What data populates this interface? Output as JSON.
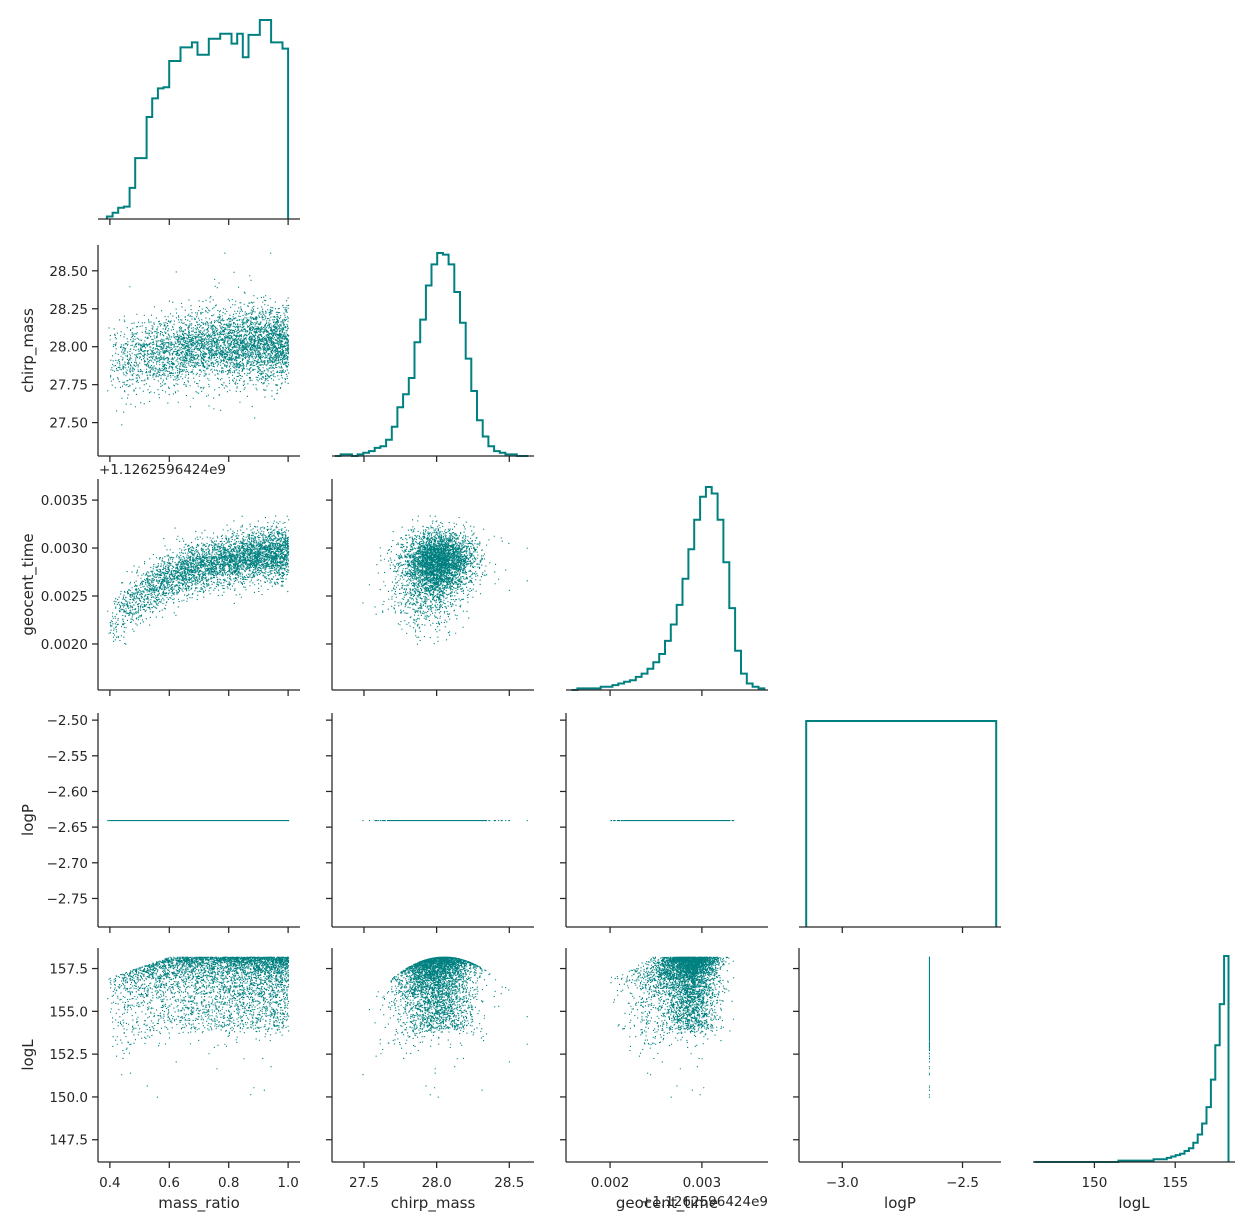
{
  "figure": {
    "color": "#008080",
    "axis_color": "#262626"
  },
  "chart_data": {
    "type": "scatter",
    "layout": "pairplot-corner",
    "variables": [
      "mass_ratio",
      "chirp_mass",
      "geocent_time",
      "logP",
      "logL"
    ],
    "offsets": {
      "geocent_time": "+1.1262596424e9"
    },
    "axes": {
      "mass_ratio": {
        "label": "mass_ratio",
        "range": [
          0.36,
          1.04
        ],
        "ticks": [
          0.4,
          0.6,
          0.8,
          1.0
        ],
        "tick_labels": [
          "0.4",
          "0.6",
          "0.8",
          "1.0"
        ]
      },
      "chirp_mass": {
        "label": "chirp_mass",
        "range": [
          27.28,
          28.67
        ],
        "ticks": [
          27.5,
          28.0,
          28.5
        ],
        "tick_labels": [
          "27.5",
          "28.0",
          "28.5"
        ],
        "y_ticks": [
          27.5,
          27.75,
          28.0,
          28.25,
          28.5
        ],
        "y_tick_labels": [
          "27.50",
          "27.75",
          "28.00",
          "28.25",
          "28.50"
        ]
      },
      "geocent_time": {
        "label": "geocent_time",
        "range": [
          0.00152,
          0.00372
        ],
        "ticks": [
          0.002,
          0.003
        ],
        "tick_labels": [
          "0.002",
          "0.003"
        ],
        "y_ticks": [
          0.002,
          0.0025,
          0.003,
          0.0035
        ],
        "y_tick_labels": [
          "0.0020",
          "0.0025",
          "0.0030",
          "0.0035"
        ]
      },
      "logP": {
        "label": "logP",
        "range": [
          -3.18,
          -2.34
        ],
        "ticks": [
          -3.0,
          -2.5
        ],
        "tick_labels": [
          "−3.0",
          "−2.5"
        ],
        "y_range": [
          -2.79,
          -2.49
        ],
        "y_ticks": [
          -2.75,
          -2.7,
          -2.65,
          -2.6,
          -2.55,
          -2.5
        ],
        "y_tick_labels": [
          "−2.75",
          "−2.70",
          "−2.65",
          "−2.60",
          "−2.55",
          "−2.50"
        ]
      },
      "logL": {
        "label": "logL",
        "range": [
          146.2,
          158.7
        ],
        "ticks": [
          150,
          155
        ],
        "tick_labels": [
          "150",
          "155"
        ],
        "y_ticks": [
          147.5,
          150.0,
          152.5,
          155.0,
          157.5
        ],
        "y_tick_labels": [
          "147.5",
          "150.0",
          "152.5",
          "155.0",
          "157.5"
        ]
      }
    },
    "histograms": {
      "mass_ratio": {
        "edges": [
          0.39,
          1.0
        ],
        "counts": [
          2,
          5,
          9,
          10,
          25,
          49,
          49,
          82,
          97,
          105,
          106,
          127,
          127,
          138,
          138,
          142,
          132,
          132,
          145,
          145,
          149,
          149,
          141,
          149,
          130,
          148,
          148,
          160,
          160,
          142,
          142,
          137
        ]
      },
      "chirp_mass": {
        "edges": [
          27.3,
          28.63
        ],
        "counts": [
          0,
          1,
          1,
          0,
          1,
          2,
          3,
          5,
          6,
          10,
          18,
          30,
          38,
          48,
          70,
          84,
          105,
          118,
          125,
          124,
          118,
          101,
          82,
          60,
          40,
          22,
          12,
          6,
          3,
          2,
          1,
          1,
          0,
          0
        ]
      },
      "geocent_time": {
        "edges": [
          0.00158,
          0.00368
        ],
        "counts": [
          0,
          1,
          1,
          1,
          1,
          2,
          2,
          3,
          4,
          5,
          6,
          8,
          10,
          13,
          17,
          22,
          30,
          40,
          52,
          68,
          86,
          104,
          118,
          124,
          120,
          104,
          78,
          50,
          24,
          10,
          4,
          2,
          1
        ]
      },
      "logP": {
        "edges": [
          -3.15,
          -2.36
        ],
        "counts": [
          1
        ]
      },
      "logL": {
        "edges": [
          146.3,
          158.3
        ],
        "counts": [
          0,
          0,
          0,
          0,
          0,
          0,
          0,
          0,
          0,
          0,
          0,
          0,
          0,
          0,
          0,
          0,
          0,
          0,
          0,
          1,
          1,
          1,
          1,
          1,
          1,
          1,
          1,
          2,
          2,
          2,
          3,
          4,
          5,
          6,
          8,
          10,
          14,
          20,
          28,
          40,
          60,
          85,
          115,
          150
        ]
      }
    }
  }
}
